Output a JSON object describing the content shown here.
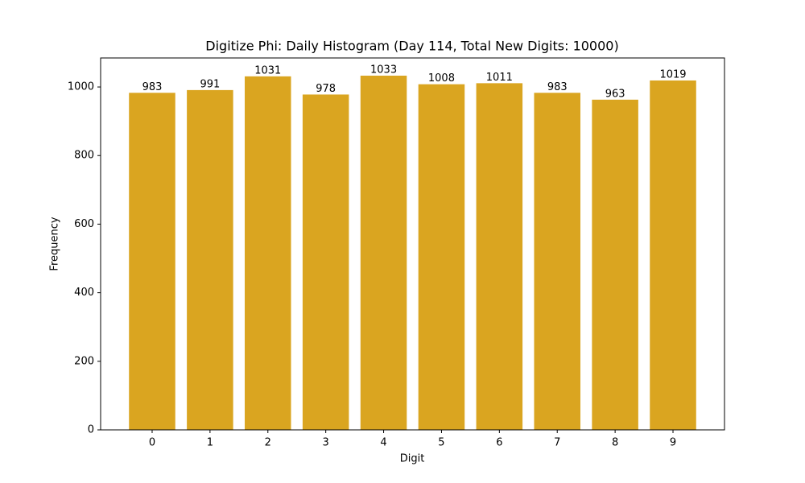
{
  "chart_data": {
    "type": "bar",
    "title": "Digitize Phi: Daily Histogram (Day 114, Total New Digits: 10000)",
    "x_label": "Digit",
    "y_label": "Frequency",
    "x": [
      0,
      1,
      2,
      3,
      4,
      5,
      6,
      7,
      8,
      9
    ],
    "values": [
      983,
      991,
      1031,
      978,
      1033,
      1008,
      1011,
      983,
      963,
      1019
    ],
    "color": "#daa520",
    "bar_width": 0.8,
    "xlim": [
      -0.89,
      9.89
    ],
    "xticks": [
      0,
      1,
      2,
      3,
      4,
      5,
      6,
      7,
      8,
      9
    ],
    "ylim": [
      0,
      1084.65
    ],
    "yticks": [
      0,
      200,
      400,
      600,
      800,
      1000
    ],
    "grid": false
  }
}
